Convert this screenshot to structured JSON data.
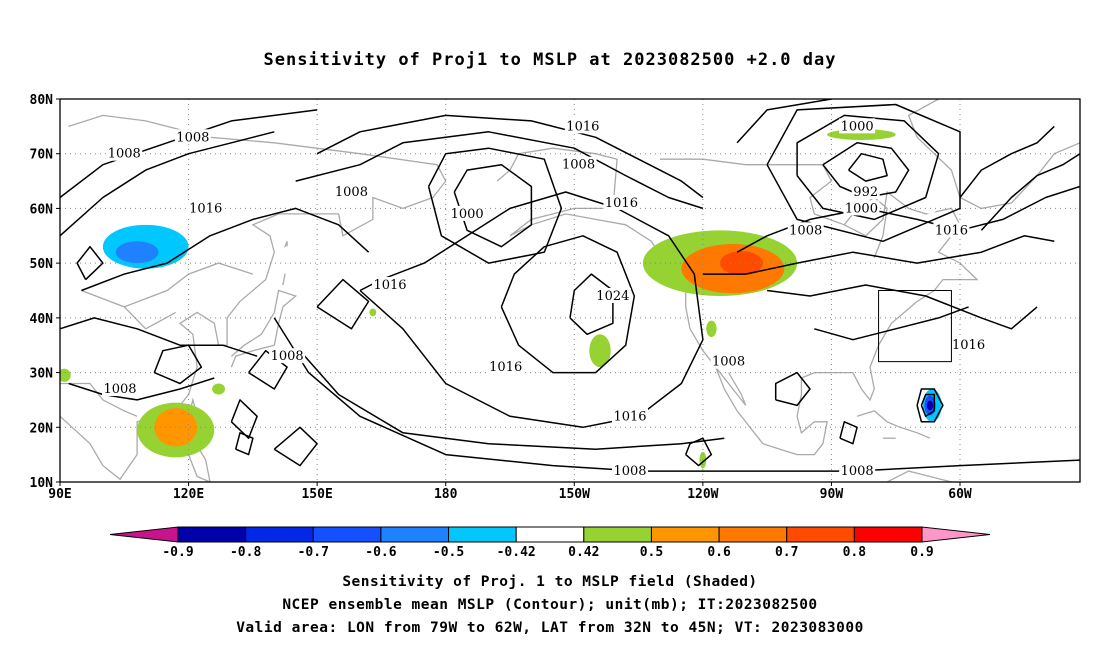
{
  "title": "Sensitivity of Proj1 to MSLP at 2023082500 +2.0 day",
  "axes": {
    "lat_labels": [
      "80N",
      "70N",
      "60N",
      "50N",
      "40N",
      "30N",
      "20N",
      "10N"
    ],
    "lon_labels": [
      "90E",
      "120E",
      "150E",
      "180",
      "150W",
      "120W",
      "90W",
      "60W"
    ]
  },
  "contour_labels": [
    {
      "text": "1008",
      "lon": 121,
      "lat": 73
    },
    {
      "text": "1008",
      "lon": 105,
      "lat": 70
    },
    {
      "text": "1016",
      "lon": 124,
      "lat": 60
    },
    {
      "text": "1008",
      "lon": 158,
      "lat": 63
    },
    {
      "text": "1016",
      "lon": 167,
      "lat": 46
    },
    {
      "text": "1008",
      "lon": 143,
      "lat": 33
    },
    {
      "text": "1008",
      "lon": 104,
      "lat": 27
    },
    {
      "text": "1016",
      "lon": -148,
      "lat": 75
    },
    {
      "text": "1008",
      "lon": -149,
      "lat": 68
    },
    {
      "text": "1000",
      "lon": -175,
      "lat": 59
    },
    {
      "text": "1016",
      "lon": -139,
      "lat": 61
    },
    {
      "text": "1024",
      "lon": -141,
      "lat": 44
    },
    {
      "text": "1016",
      "lon": -166,
      "lat": 31
    },
    {
      "text": "1016",
      "lon": -137,
      "lat": 22
    },
    {
      "text": "1008",
      "lon": -114,
      "lat": 32
    },
    {
      "text": "1008",
      "lon": -137,
      "lat": 12
    },
    {
      "text": "1008",
      "lon": -96,
      "lat": 56
    },
    {
      "text": "1000",
      "lon": -84,
      "lat": 75
    },
    {
      "text": "992",
      "lon": -82,
      "lat": 63
    },
    {
      "text": "1000",
      "lon": -83,
      "lat": 60
    },
    {
      "text": "1016",
      "lon": -62,
      "lat": 56
    },
    {
      "text": "1016",
      "lon": -58,
      "lat": 35
    },
    {
      "text": "1008",
      "lon": -84,
      "lat": 12
    }
  ],
  "valid_box": {
    "lon_w": -79,
    "lon_e": -62,
    "lat_s": 32,
    "lat_n": 45
  },
  "shading": {
    "positive": [
      {
        "lon": -116,
        "lat": 50,
        "rx": 18,
        "ry": 6,
        "level": 0.42
      },
      {
        "lon": -113,
        "lat": 49,
        "rx": 12,
        "ry": 4.5,
        "level": 0.6
      },
      {
        "lon": -111,
        "lat": 50,
        "rx": 5,
        "ry": 2.2,
        "level": 0.7
      },
      {
        "lon": -83,
        "lat": 73.5,
        "rx": 8,
        "ry": 1,
        "level": 0.42
      },
      {
        "lon": -144,
        "lat": 34,
        "rx": 2.5,
        "ry": 3,
        "level": 0.42
      },
      {
        "lon": -118,
        "lat": 38,
        "rx": 1.2,
        "ry": 1.5,
        "level": 0.42
      },
      {
        "lon": 117,
        "lat": 19.5,
        "rx": 9,
        "ry": 5,
        "level": 0.42
      },
      {
        "lon": 117,
        "lat": 20,
        "rx": 5,
        "ry": 3.5,
        "level": 0.5
      },
      {
        "lon": 91,
        "lat": 29.5,
        "rx": 1.5,
        "ry": 1.2,
        "level": 0.42
      },
      {
        "lon": -120,
        "lat": 14,
        "rx": 0.8,
        "ry": 1.5,
        "level": 0.42
      },
      {
        "lon": 127,
        "lat": 27,
        "rx": 1.5,
        "ry": 1,
        "level": 0.42
      },
      {
        "lon": 163,
        "lat": 41,
        "rx": 0.8,
        "ry": 0.7,
        "level": 0.42
      }
    ],
    "negative": [
      {
        "lon": 110,
        "lat": 54,
        "rx": 14,
        "ry": 6,
        "level": -0.42
      },
      {
        "lon": 110,
        "lat": 53,
        "rx": 10,
        "ry": 4,
        "level": -0.5
      },
      {
        "lon": 108,
        "lat": 52,
        "rx": 5,
        "ry": 2,
        "level": -0.6
      },
      {
        "lon": 139,
        "lat": 65,
        "rx": 5,
        "ry": 3,
        "level": -0.42
      },
      {
        "lon": 145,
        "lat": 50.5,
        "rx": 5,
        "ry": 2.8,
        "level": -0.42
      },
      {
        "lon": -66,
        "lat": 23.5,
        "rx": 3.5,
        "ry": 4.5,
        "level": -0.42
      },
      {
        "lon": -66.5,
        "lat": 24,
        "rx": 2.2,
        "ry": 3,
        "level": -0.5
      },
      {
        "lon": -67,
        "lat": 24,
        "rx": 1.3,
        "ry": 1.8,
        "level": -0.7
      },
      {
        "lon": -67,
        "lat": 24,
        "rx": 0.7,
        "ry": 0.9,
        "level": -0.9
      },
      {
        "lon": -67,
        "lat": 62,
        "rx": 2.5,
        "ry": 3,
        "level": -0.42
      },
      {
        "lon": -52,
        "lat": 54,
        "rx": 8,
        "ry": 5,
        "level": -0.42
      },
      {
        "lon": -55,
        "lat": 75,
        "rx": 4,
        "ry": 1.2,
        "level": -0.42
      }
    ]
  },
  "colorbar": {
    "labels": [
      "-0.9",
      "-0.8",
      "-0.7",
      "-0.6",
      "-0.5",
      "-0.42",
      "0.42",
      "0.5",
      "0.6",
      "0.7",
      "0.8",
      "0.9"
    ],
    "colors": {
      "below_min": "#c8148c",
      "-0.9": "#0000aa",
      "-0.8": "#0028e6",
      "-0.7": "#1450ff",
      "-0.6": "#1e82ff",
      "-0.5": "#00c8ff",
      "-0.42": "#ffffff",
      "0.42": "#96d232",
      "0.5": "#ff9600",
      "0.6": "#ff7800",
      "0.7": "#ff4b00",
      "0.8": "#ff0000",
      "above_max": "#ff96c8"
    }
  },
  "captions": [
    "Sensitivity of Proj. 1 to MSLP field (Shaded)",
    "NCEP ensemble mean MSLP (Contour); unit(mb); IT:2023082500",
    "Valid area: LON from 79W to 62W, LAT from 32N to 45N; VT: 2023083000"
  ]
}
